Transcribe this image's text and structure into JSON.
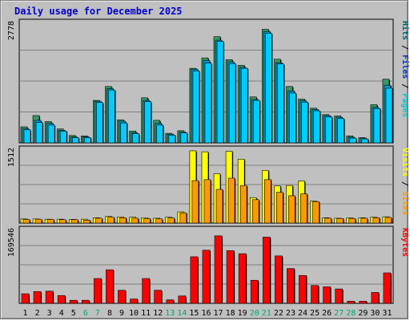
{
  "title": "Daily usage for December 2025",
  "chart_data": {
    "type": "bar",
    "categories": [
      "1",
      "2",
      "3",
      "4",
      "5",
      "6",
      "7",
      "8",
      "9",
      "10",
      "11",
      "12",
      "13",
      "14",
      "15",
      "16",
      "17",
      "18",
      "19",
      "20",
      "21",
      "22",
      "23",
      "24",
      "25",
      "26",
      "27",
      "28",
      "29",
      "30",
      "31"
    ],
    "weekend_days": [
      "6",
      "7",
      "13",
      "14",
      "20",
      "21",
      "27",
      "28"
    ],
    "panels": [
      {
        "name": "hits-files-pages",
        "ymax_label": "2778",
        "ymax": 2778,
        "axis_labels": [
          {
            "text": "Pages",
            "color": "#00cccc"
          },
          {
            "text": "Files",
            "color": "#0033cc"
          },
          {
            "text": "Hits",
            "color": "#006666"
          }
        ],
        "series": [
          {
            "name": "Hits",
            "color": "#339966",
            "values": [
              370,
              630,
              490,
              320,
              170,
              160,
              980,
              1300,
              530,
              270,
              1040,
              520,
              220,
              280,
              1720,
              1960,
              2450,
              1920,
              1790,
              1060,
              2620,
              1930,
              1300,
              1010,
              800,
              650,
              620,
              160,
              120,
              880,
              1470
            ]
          },
          {
            "name": "Files",
            "color": "#0099cc",
            "values": [
              330,
              520,
              450,
              290,
              140,
              140,
              960,
              1250,
              500,
              230,
              980,
              450,
              200,
              250,
              1700,
              1900,
              2370,
              1870,
              1740,
              1000,
              2570,
              1850,
              1200,
              970,
              770,
              630,
              590,
              130,
              110,
              820,
              1330
            ]
          },
          {
            "name": "Pages",
            "color": "#00ccff",
            "values": [
              300,
              470,
              410,
              270,
              120,
              120,
              930,
              1220,
              460,
              210,
              950,
              410,
              180,
              230,
              1660,
              1840,
              2340,
              1830,
              1720,
              980,
              2530,
              1820,
              1150,
              940,
              740,
              600,
              560,
              110,
              90,
              790,
              1260
            ]
          }
        ]
      },
      {
        "name": "visits-sites",
        "ymax_label": "1512",
        "ymax": 1512,
        "axis_labels": [
          {
            "text": "Sites",
            "color": "#ff9900"
          },
          {
            "text": "Visits",
            "color": "#ffff00"
          }
        ],
        "series": [
          {
            "name": "Visits",
            "color": "#ffff00",
            "values": [
              85,
              85,
              80,
              80,
              75,
              80,
              110,
              135,
              125,
              120,
              110,
              100,
              120,
              230,
              1480,
              1460,
              1010,
              1470,
              1310,
              520,
              1080,
              760,
              770,
              860,
              450,
              110,
              100,
              110,
              110,
              125,
              130
            ]
          },
          {
            "name": "Sites",
            "color": "#ff9900",
            "values": [
              75,
              80,
              75,
              70,
              70,
              60,
              100,
              120,
              110,
              100,
              90,
              85,
              105,
              210,
              870,
              890,
              690,
              920,
              770,
              480,
              890,
              630,
              560,
              600,
              440,
              100,
              95,
              95,
              100,
              110,
              115
            ]
          }
        ]
      },
      {
        "name": "kbytes",
        "ymax_label": "169546",
        "ymax": 169546,
        "axis_labels": [
          {
            "text": "KBytes",
            "color": "#ff0000"
          }
        ],
        "series": [
          {
            "name": "KBytes",
            "color": "#ff0000",
            "values": [
              22000,
              27000,
              28000,
              18000,
              7000,
              7000,
              57000,
              77000,
              30000,
              10000,
              57000,
              30000,
              8000,
              17000,
              107000,
              122000,
              155000,
              121000,
              114000,
              53000,
              152000,
              109000,
              80000,
              64000,
              41000,
              38000,
              33000,
              5000,
              5000,
              25000,
              70000
            ]
          }
        ]
      }
    ],
    "xlabel": "",
    "grid": true
  }
}
